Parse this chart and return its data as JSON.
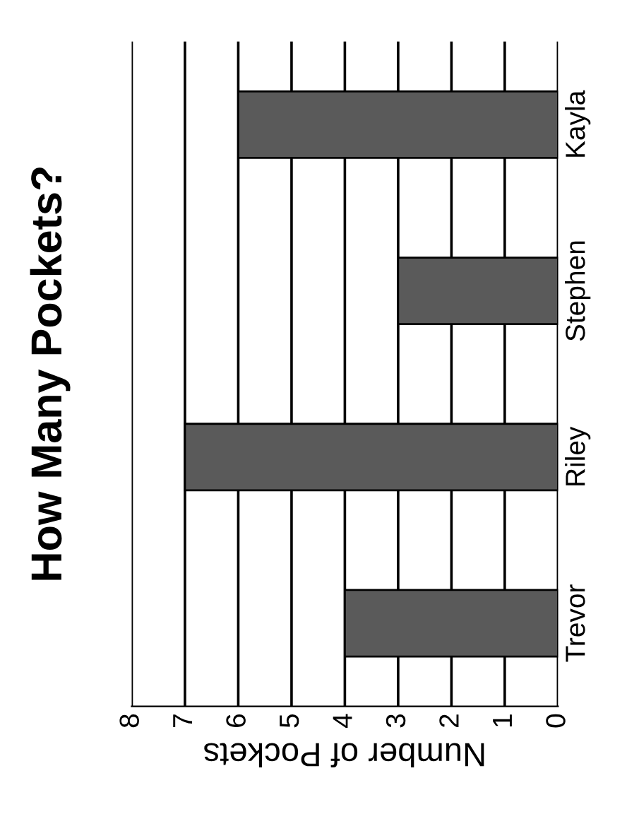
{
  "chart_data": {
    "type": "bar",
    "orientation": "horizontal",
    "title": "How Many Pockets?",
    "xlabel": "Number of Pockets",
    "categories": [
      "Kayla",
      "Stephen",
      "Riley",
      "Trevor"
    ],
    "values": [
      6,
      3,
      7,
      4
    ],
    "color": "#5a5a5a",
    "xlim": [
      8,
      0
    ],
    "xticks": [
      0,
      1,
      2,
      3,
      4,
      5,
      6,
      7,
      8
    ],
    "grid": "x",
    "legend": false
  }
}
